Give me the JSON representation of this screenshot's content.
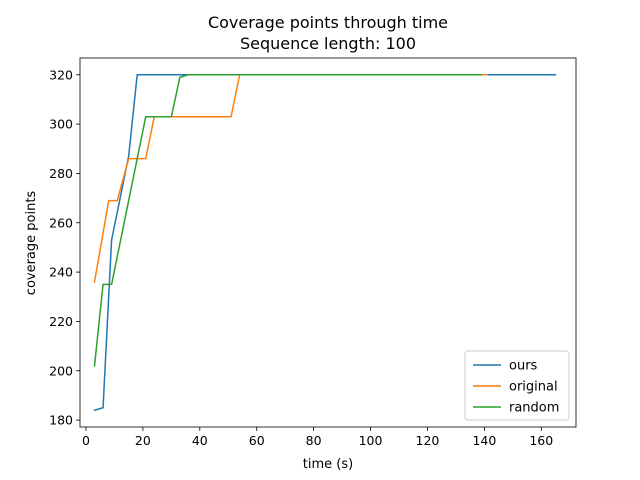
{
  "chart_data": {
    "type": "line",
    "title": "Coverage points through time",
    "subtitle": "Sequence length: 100",
    "xlabel": "time (s)",
    "ylabel": "coverage points",
    "xlim": [
      -2.1,
      172.2
    ],
    "ylim": [
      177.2,
      326.8
    ],
    "xticks": [
      0,
      20,
      40,
      60,
      80,
      100,
      120,
      140,
      160
    ],
    "yticks": [
      180,
      200,
      220,
      240,
      260,
      280,
      300,
      320
    ],
    "grid": false,
    "legend_position": "lower-right",
    "series": [
      {
        "name": "ours",
        "color": "#1f77b4",
        "x": [
          3,
          6,
          9,
          12,
          15,
          18,
          20,
          100,
          165
        ],
        "y": [
          184,
          185,
          253,
          270,
          287,
          320,
          320,
          320,
          320
        ]
      },
      {
        "name": "original",
        "color": "#ff7f0e",
        "x": [
          3,
          8,
          11,
          15,
          21,
          24,
          51,
          54,
          60,
          141
        ],
        "y": [
          236,
          269,
          269,
          286,
          286,
          303,
          303,
          320,
          320,
          320
        ]
      },
      {
        "name": "random",
        "color": "#2ca02c",
        "x": [
          3,
          6,
          9,
          21,
          30,
          33,
          36,
          139
        ],
        "y": [
          202,
          235,
          235,
          303,
          303,
          319,
          320,
          320
        ]
      }
    ]
  }
}
